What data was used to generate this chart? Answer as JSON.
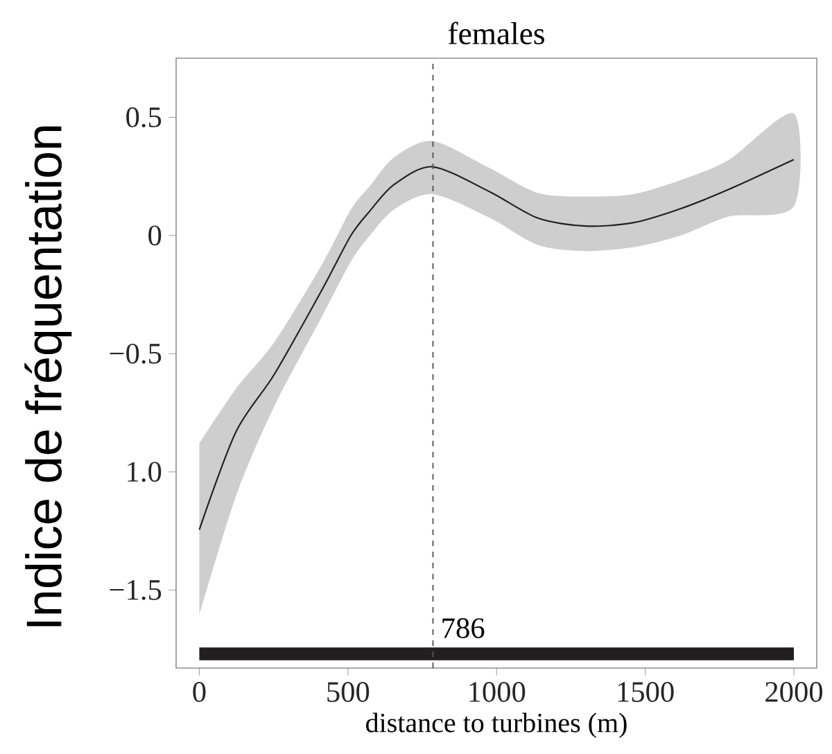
{
  "chart_data": {
    "type": "line",
    "title": "females",
    "xlabel": "distance to turbines (m)",
    "ylabel": "Indice de fréquentation",
    "xlim": [
      -78,
      2077
    ],
    "ylim": [
      -1.83,
      0.75
    ],
    "xticks": [
      0,
      500,
      1000,
      1500,
      2000
    ],
    "yticks": [
      {
        "value": -1.5,
        "label": "−1.5"
      },
      {
        "value": -1,
        "label": "1.0"
      },
      {
        "value": -0.5,
        "label": "−0.5"
      },
      0,
      0.5
    ],
    "series": [
      {
        "color": "#231f20",
        "x": [
          0,
          124,
          253,
          414,
          510,
          574,
          655,
          784,
          977,
          1138,
          1298,
          1459,
          1620,
          1781,
          2000
        ],
        "values": [
          -1.245,
          -0.829,
          -0.586,
          -0.227,
          0.0,
          0.104,
          0.215,
          0.291,
          0.185,
          0.074,
          0.04,
          0.054,
          0.114,
          0.195,
          0.321
        ],
        "upper": [
          -0.88,
          -0.647,
          -0.45,
          -0.12,
          0.11,
          0.21,
          0.33,
          0.4,
          0.285,
          0.18,
          0.165,
          0.175,
          0.235,
          0.32,
          0.516
        ],
        "lower": [
          -1.605,
          -1.1,
          -0.72,
          -0.34,
          -0.11,
          0.0,
          0.11,
          0.175,
          0.075,
          -0.04,
          -0.066,
          -0.05,
          0.0,
          0.08,
          0.124
        ]
      },
      {
        "color": "#231f20",
        "x": [
          0,
          2000
        ],
        "values": [
          -1.77,
          -1.77
        ]
      }
    ],
    "ref_lines": [
      {
        "axis": "x",
        "value": 786,
        "label": "786",
        "line_style": "dashed",
        "color": "#555555"
      }
    ],
    "line_style": "solid"
  }
}
